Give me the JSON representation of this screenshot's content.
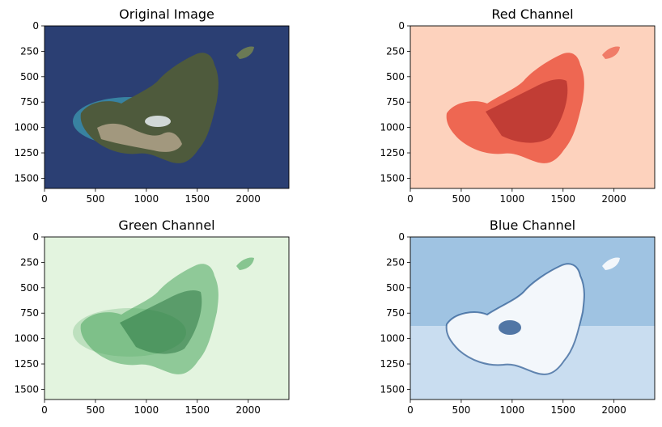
{
  "figure": {
    "panels": [
      {
        "id": "original",
        "title": "Original Image",
        "colormap": "rgb",
        "xticks": [
          "0",
          "500",
          "1000",
          "1500",
          "2000"
        ],
        "yticks": [
          "0",
          "250",
          "500",
          "750",
          "1000",
          "1250",
          "1500"
        ]
      },
      {
        "id": "red",
        "title": "Red Channel",
        "colormap": "Reds",
        "colors": {
          "light": "#fdd2bd",
          "mid": "#e8432f",
          "dark": "#8a0b12"
        },
        "xticks": [
          "0",
          "500",
          "1000",
          "1500",
          "2000"
        ],
        "yticks": [
          "0",
          "250",
          "500",
          "750",
          "1000",
          "1250",
          "1500"
        ]
      },
      {
        "id": "green",
        "title": "Green Channel",
        "colormap": "Greens",
        "colors": {
          "light": "#e3f4df",
          "mid": "#4aa55c",
          "dark": "#0b5a26"
        },
        "xticks": [
          "0",
          "500",
          "1000",
          "1500",
          "2000"
        ],
        "yticks": [
          "0",
          "250",
          "500",
          "750",
          "1000",
          "1250",
          "1500"
        ]
      },
      {
        "id": "blue",
        "title": "Blue Channel",
        "colormap": "Blues",
        "colors": {
          "light": "#c9ddf0",
          "mid": "#4f93c8",
          "dark": "#0b3f80"
        },
        "xticks": [
          "0",
          "500",
          "1000",
          "1500",
          "2000"
        ],
        "yticks": [
          "0",
          "250",
          "500",
          "750",
          "1000",
          "1250",
          "1500"
        ]
      }
    ],
    "original_colors": {
      "sea": "#2b3f73",
      "shallow": "#3fa0b5",
      "land": "#4e5a3c",
      "urban": "#b8a78e",
      "cloud": "#e9eef2"
    }
  }
}
